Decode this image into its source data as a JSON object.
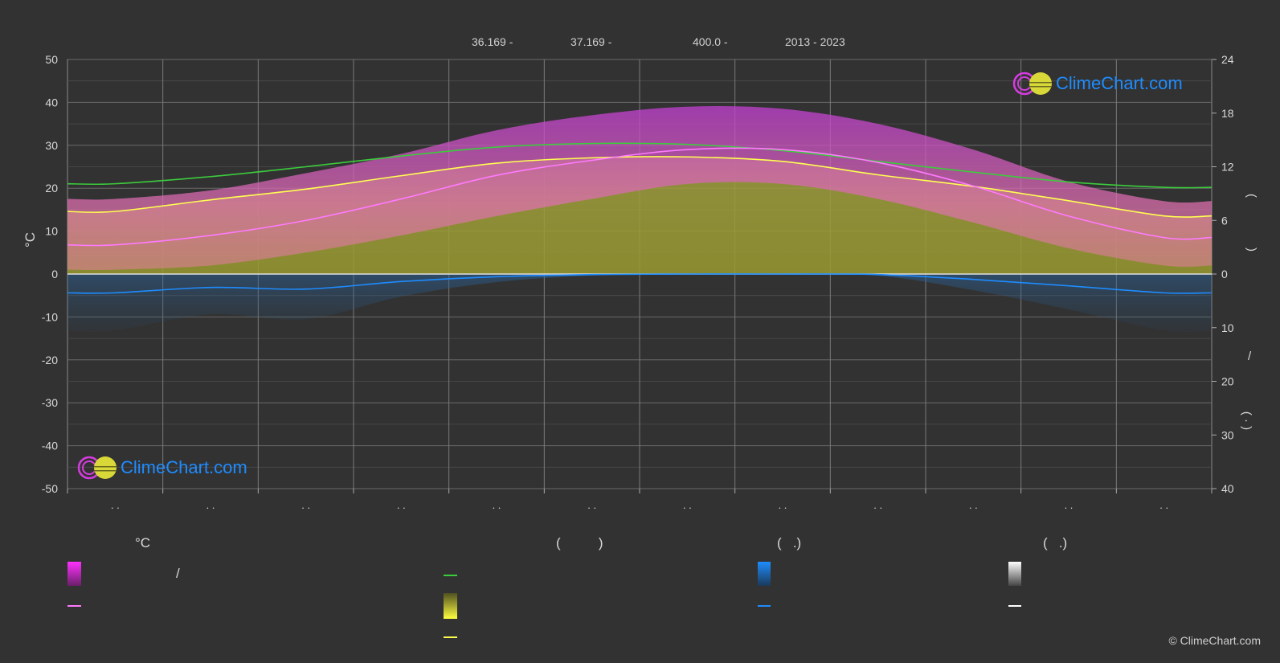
{
  "header": {
    "lat": "36.169 -",
    "lon": "37.169 -",
    "elev": "400.0 -",
    "years": "2013 - 2023"
  },
  "watermark": {
    "text": "ClimeChart.com"
  },
  "copyright": "© ClimeChart.com",
  "colors": {
    "background": "#323232",
    "grid": "#6a6a6a",
    "sunshine": "#c8c83c",
    "daylight": "#3ccc3c",
    "temp_band": "#e040e0",
    "avg_temp": "#ff7aff",
    "avg_sun": "#ffff50",
    "rain": "#1e8cff",
    "snow": "#cccccc",
    "logo_blue": "#1e8cff",
    "logo_magenta": "#d63be0",
    "logo_yellow": "#e8e830"
  },
  "legend": {
    "col1_title": "°C",
    "col1_slash": "/",
    "col2_title": "(          )",
    "col3_title": "(   .)",
    "col4_title": "(   .)"
  },
  "chart_data": {
    "type": "area",
    "x_months": [
      1,
      2,
      3,
      4,
      5,
      6,
      7,
      8,
      9,
      10,
      11,
      12
    ],
    "month_tick_labels": [
      ". .",
      ". .",
      ". .",
      ". .",
      ". .",
      ". .",
      ". .",
      ". .",
      ". .",
      ". .",
      ". .",
      ". ."
    ],
    "left_axis": {
      "label": "°C",
      "range": [
        -50,
        50
      ],
      "ticks": [
        50,
        40,
        30,
        20,
        10,
        0,
        -10,
        -20,
        -30,
        -40,
        -50
      ]
    },
    "right_axis_top": {
      "range": [
        0,
        24
      ],
      "ticks": [
        24,
        18,
        12,
        6,
        0
      ],
      "label_fragments": [
        "(",
        ")"
      ]
    },
    "right_axis_bottom": {
      "range": [
        0,
        40
      ],
      "ticks": [
        10,
        20,
        30,
        40
      ],
      "label_fragments": [
        "/",
        "(  ·  )"
      ]
    },
    "grid": true,
    "series": [
      {
        "key": "daylight",
        "axis": "right_top_hours",
        "values": [
          10.1,
          10.9,
          12.0,
          13.2,
          14.2,
          14.6,
          14.5,
          13.8,
          12.6,
          11.4,
          10.3,
          9.7
        ]
      },
      {
        "key": "avg_sunshine",
        "axis": "right_top_hours",
        "values": [
          7.0,
          8.3,
          9.5,
          11.0,
          12.4,
          13.0,
          13.1,
          12.6,
          11.1,
          9.8,
          8.2,
          6.5
        ]
      },
      {
        "key": "avg_temp",
        "axis": "left_celsius",
        "values": [
          6.8,
          9.0,
          12.5,
          17.5,
          23.0,
          26.5,
          29.0,
          29.0,
          26.0,
          20.5,
          13.5,
          8.5
        ]
      },
      {
        "key": "temp_band_max",
        "axis": "left_celsius",
        "values": [
          17.5,
          19.5,
          23.5,
          28.0,
          33.5,
          37.0,
          39.0,
          38.5,
          35.0,
          29.0,
          21.5,
          17.0
        ]
      },
      {
        "key": "temp_band_min",
        "axis": "left_celsius",
        "values": [
          1.0,
          2.0,
          5.0,
          9.0,
          13.5,
          17.5,
          21.0,
          21.0,
          17.5,
          12.0,
          6.0,
          2.0
        ]
      },
      {
        "key": "avg_precip",
        "axis": "right_bottom_mm",
        "values": [
          3.5,
          2.5,
          2.8,
          1.4,
          0.5,
          0.1,
          0.0,
          0.0,
          0.1,
          1.0,
          2.2,
          3.5
        ]
      }
    ]
  }
}
